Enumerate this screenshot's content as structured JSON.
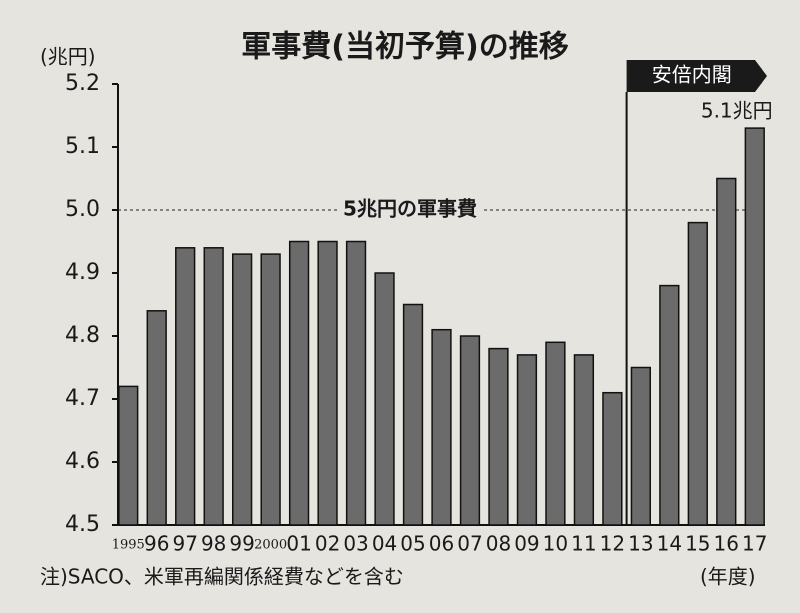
{
  "chart_data": {
    "type": "bar",
    "title": "軍事費(当初予算)の推移",
    "y_label": "(兆円)",
    "x_label": "(年度)",
    "note": "注)SACO、米軍再編関係経費などを含む",
    "categories": [
      "1995",
      "96",
      "97",
      "98",
      "99",
      "2000",
      "01",
      "02",
      "03",
      "04",
      "05",
      "06",
      "07",
      "08",
      "09",
      "10",
      "11",
      "12",
      "13",
      "14",
      "15",
      "16",
      "17"
    ],
    "values": [
      4.72,
      4.84,
      4.94,
      4.94,
      4.93,
      4.93,
      4.95,
      4.95,
      4.95,
      4.9,
      4.85,
      4.81,
      4.8,
      4.78,
      4.77,
      4.79,
      4.77,
      4.71,
      4.75,
      4.88,
      4.98,
      5.05,
      5.13
    ],
    "value_labels": [
      null,
      null,
      null,
      null,
      null,
      null,
      null,
      null,
      null,
      null,
      null,
      null,
      null,
      null,
      null,
      null,
      null,
      null,
      null,
      null,
      null,
      null,
      "5.1兆円"
    ],
    "color": "#6b6b6b",
    "ylim": [
      4.5,
      5.2
    ],
    "yticks": [
      4.5,
      4.6,
      4.7,
      4.8,
      4.9,
      {
        "value": 5,
        "label": "5.0"
      },
      5.1,
      5.2
    ],
    "grid": false,
    "reference_line": {
      "value": 5,
      "label": "5兆円の軍事費"
    },
    "period": {
      "label": "安倍内閣",
      "start": "13"
    }
  }
}
